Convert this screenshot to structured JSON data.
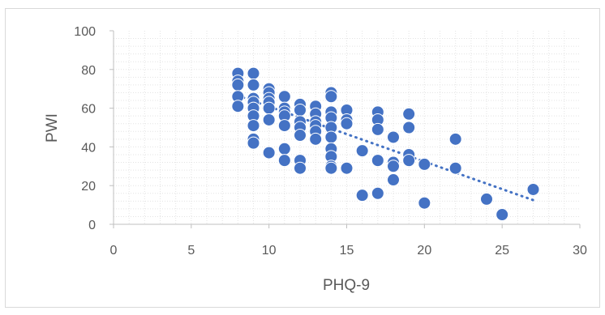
{
  "chart_data": {
    "type": "scatter",
    "title": "",
    "xlabel": "PHQ-9",
    "ylabel": "PWI",
    "xlim": [
      0,
      30
    ],
    "ylim": [
      0,
      100
    ],
    "x_ticks": [
      0,
      5,
      10,
      15,
      20,
      25,
      30
    ],
    "y_ticks": [
      0,
      20,
      40,
      60,
      80,
      100
    ],
    "grid": "major and minor dotted",
    "legend": "none",
    "marker_color": "#4472C4",
    "trendline": {
      "type": "linear",
      "style": "dotted",
      "color": "#4472C4",
      "x": [
        8,
        27
      ],
      "y": [
        66.5,
        12.5
      ]
    },
    "series": [
      {
        "points": [
          {
            "x": 8,
            "y": 78
          },
          {
            "x": 8,
            "y": 74
          },
          {
            "x": 8,
            "y": 72
          },
          {
            "x": 8,
            "y": 66
          },
          {
            "x": 8,
            "y": 61
          },
          {
            "x": 9,
            "y": 78
          },
          {
            "x": 9,
            "y": 72
          },
          {
            "x": 9,
            "y": 65
          },
          {
            "x": 9,
            "y": 63
          },
          {
            "x": 9,
            "y": 60
          },
          {
            "x": 9,
            "y": 56
          },
          {
            "x": 9,
            "y": 51
          },
          {
            "x": 9,
            "y": 44
          },
          {
            "x": 9,
            "y": 42
          },
          {
            "x": 10,
            "y": 70
          },
          {
            "x": 10,
            "y": 68
          },
          {
            "x": 10,
            "y": 65
          },
          {
            "x": 10,
            "y": 63
          },
          {
            "x": 10,
            "y": 60
          },
          {
            "x": 10,
            "y": 54
          },
          {
            "x": 10,
            "y": 37
          },
          {
            "x": 11,
            "y": 66
          },
          {
            "x": 11,
            "y": 60
          },
          {
            "x": 11,
            "y": 58
          },
          {
            "x": 11,
            "y": 56
          },
          {
            "x": 11,
            "y": 51
          },
          {
            "x": 11,
            "y": 39
          },
          {
            "x": 11,
            "y": 33
          },
          {
            "x": 12,
            "y": 62
          },
          {
            "x": 12,
            "y": 59
          },
          {
            "x": 12,
            "y": 53
          },
          {
            "x": 12,
            "y": 50
          },
          {
            "x": 12,
            "y": 46
          },
          {
            "x": 12,
            "y": 33
          },
          {
            "x": 12,
            "y": 29
          },
          {
            "x": 13,
            "y": 61
          },
          {
            "x": 13,
            "y": 57
          },
          {
            "x": 13,
            "y": 53
          },
          {
            "x": 13,
            "y": 51
          },
          {
            "x": 13,
            "y": 48
          },
          {
            "x": 13,
            "y": 44
          },
          {
            "x": 14,
            "y": 68
          },
          {
            "x": 14,
            "y": 66
          },
          {
            "x": 14,
            "y": 58
          },
          {
            "x": 14,
            "y": 55
          },
          {
            "x": 14,
            "y": 50
          },
          {
            "x": 14,
            "y": 45
          },
          {
            "x": 14,
            "y": 39
          },
          {
            "x": 14,
            "y": 35
          },
          {
            "x": 14,
            "y": 30
          },
          {
            "x": 14,
            "y": 29
          },
          {
            "x": 15,
            "y": 59
          },
          {
            "x": 15,
            "y": 54
          },
          {
            "x": 15,
            "y": 52
          },
          {
            "x": 15,
            "y": 29
          },
          {
            "x": 16,
            "y": 38
          },
          {
            "x": 16,
            "y": 15
          },
          {
            "x": 17,
            "y": 58
          },
          {
            "x": 17,
            "y": 54
          },
          {
            "x": 17,
            "y": 49
          },
          {
            "x": 17,
            "y": 33
          },
          {
            "x": 17,
            "y": 16
          },
          {
            "x": 18,
            "y": 45
          },
          {
            "x": 18,
            "y": 32
          },
          {
            "x": 18,
            "y": 30
          },
          {
            "x": 18,
            "y": 23
          },
          {
            "x": 19,
            "y": 57
          },
          {
            "x": 19,
            "y": 50
          },
          {
            "x": 19,
            "y": 36
          },
          {
            "x": 19,
            "y": 33
          },
          {
            "x": 20,
            "y": 31
          },
          {
            "x": 20,
            "y": 11
          },
          {
            "x": 22,
            "y": 44
          },
          {
            "x": 22,
            "y": 29
          },
          {
            "x": 24,
            "y": 13
          },
          {
            "x": 25,
            "y": 5
          },
          {
            "x": 27,
            "y": 18
          }
        ]
      }
    ]
  }
}
